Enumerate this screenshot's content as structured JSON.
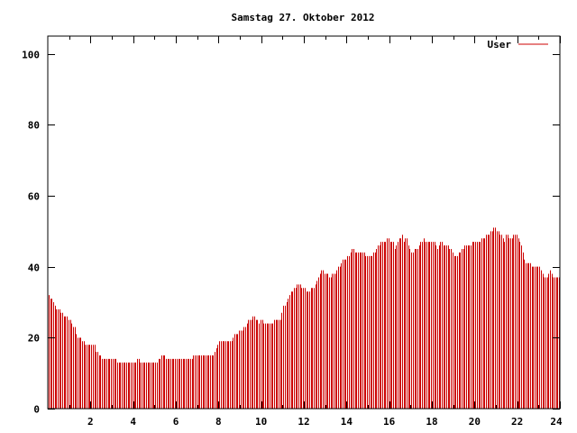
{
  "chart_data": {
    "type": "bar",
    "title": "Samstag 27. Oktober 2012",
    "xlabel": "",
    "ylabel": "",
    "xlim": [
      0,
      24
    ],
    "ylim": [
      0,
      105
    ],
    "x_ticks": [
      "2",
      "4",
      "6",
      "8",
      "10",
      "12",
      "14",
      "16",
      "18",
      "20",
      "22",
      "24"
    ],
    "y_ticks": [
      "0",
      "20",
      "40",
      "60",
      "80",
      "100"
    ],
    "grid": false,
    "legend_position": "top-right",
    "series": [
      {
        "name": "User",
        "color": "#cc0000",
        "values": [
          32,
          31,
          31,
          30,
          29,
          28,
          28,
          28,
          27,
          27,
          26,
          26,
          26,
          25,
          25,
          24,
          23,
          23,
          21,
          20,
          20,
          20,
          19,
          19,
          18,
          18,
          18,
          18,
          18,
          18,
          18,
          16,
          16,
          15,
          15,
          14,
          14,
          14,
          14,
          14,
          14,
          14,
          14,
          14,
          14,
          13,
          13,
          13,
          13,
          13,
          13,
          13,
          13,
          13,
          13,
          13,
          13,
          13,
          14,
          14,
          13,
          13,
          13,
          13,
          13,
          13,
          13,
          13,
          13,
          13,
          13,
          13,
          14,
          14,
          15,
          15,
          15,
          14,
          14,
          14,
          14,
          14,
          14,
          14,
          14,
          14,
          14,
          14,
          14,
          14,
          14,
          14,
          14,
          14,
          14,
          15,
          15,
          15,
          15,
          15,
          15,
          15,
          15,
          15,
          15,
          15,
          15,
          15,
          15,
          16,
          17,
          18,
          19,
          19,
          19,
          19,
          19,
          19,
          19,
          19,
          19,
          20,
          21,
          21,
          21,
          22,
          22,
          22,
          23,
          23,
          24,
          25,
          25,
          25,
          26,
          26,
          25,
          25,
          24,
          25,
          25,
          24,
          24,
          24,
          24,
          24,
          24,
          24,
          25,
          25,
          25,
          25,
          25,
          27,
          29,
          29,
          30,
          31,
          32,
          33,
          33,
          34,
          34,
          35,
          35,
          35,
          34,
          34,
          34,
          33,
          33,
          33,
          34,
          34,
          34,
          35,
          36,
          37,
          38,
          39,
          39,
          38,
          38,
          38,
          37,
          37,
          38,
          38,
          38,
          39,
          40,
          40,
          41,
          42,
          42,
          42,
          43,
          43,
          44,
          45,
          45,
          44,
          44,
          44,
          44,
          44,
          44,
          44,
          43,
          43,
          43,
          43,
          43,
          44,
          44,
          45,
          46,
          46,
          47,
          47,
          47,
          47,
          48,
          48,
          47,
          47,
          47,
          45,
          46,
          47,
          48,
          48,
          49,
          47,
          48,
          48,
          46,
          45,
          44,
          44,
          45,
          45,
          45,
          46,
          47,
          47,
          48,
          47,
          47,
          47,
          47,
          47,
          47,
          47,
          46,
          45,
          46,
          47,
          47,
          46,
          46,
          46,
          46,
          45,
          45,
          44,
          43,
          43,
          43,
          44,
          44,
          45,
          45,
          46,
          46,
          46,
          46,
          46,
          47,
          47,
          47,
          47,
          47,
          47,
          48,
          48,
          48,
          49,
          49,
          49,
          50,
          50,
          51,
          51,
          50,
          50,
          49,
          49,
          48,
          47,
          49,
          49,
          48,
          48,
          48,
          49,
          49,
          49,
          48,
          47,
          46,
          44,
          42,
          41,
          41,
          41,
          41,
          40,
          40,
          40,
          40,
          40,
          40,
          39,
          38,
          37,
          37,
          37,
          38,
          39,
          38,
          37,
          37,
          37,
          37,
          37
        ]
      }
    ]
  }
}
